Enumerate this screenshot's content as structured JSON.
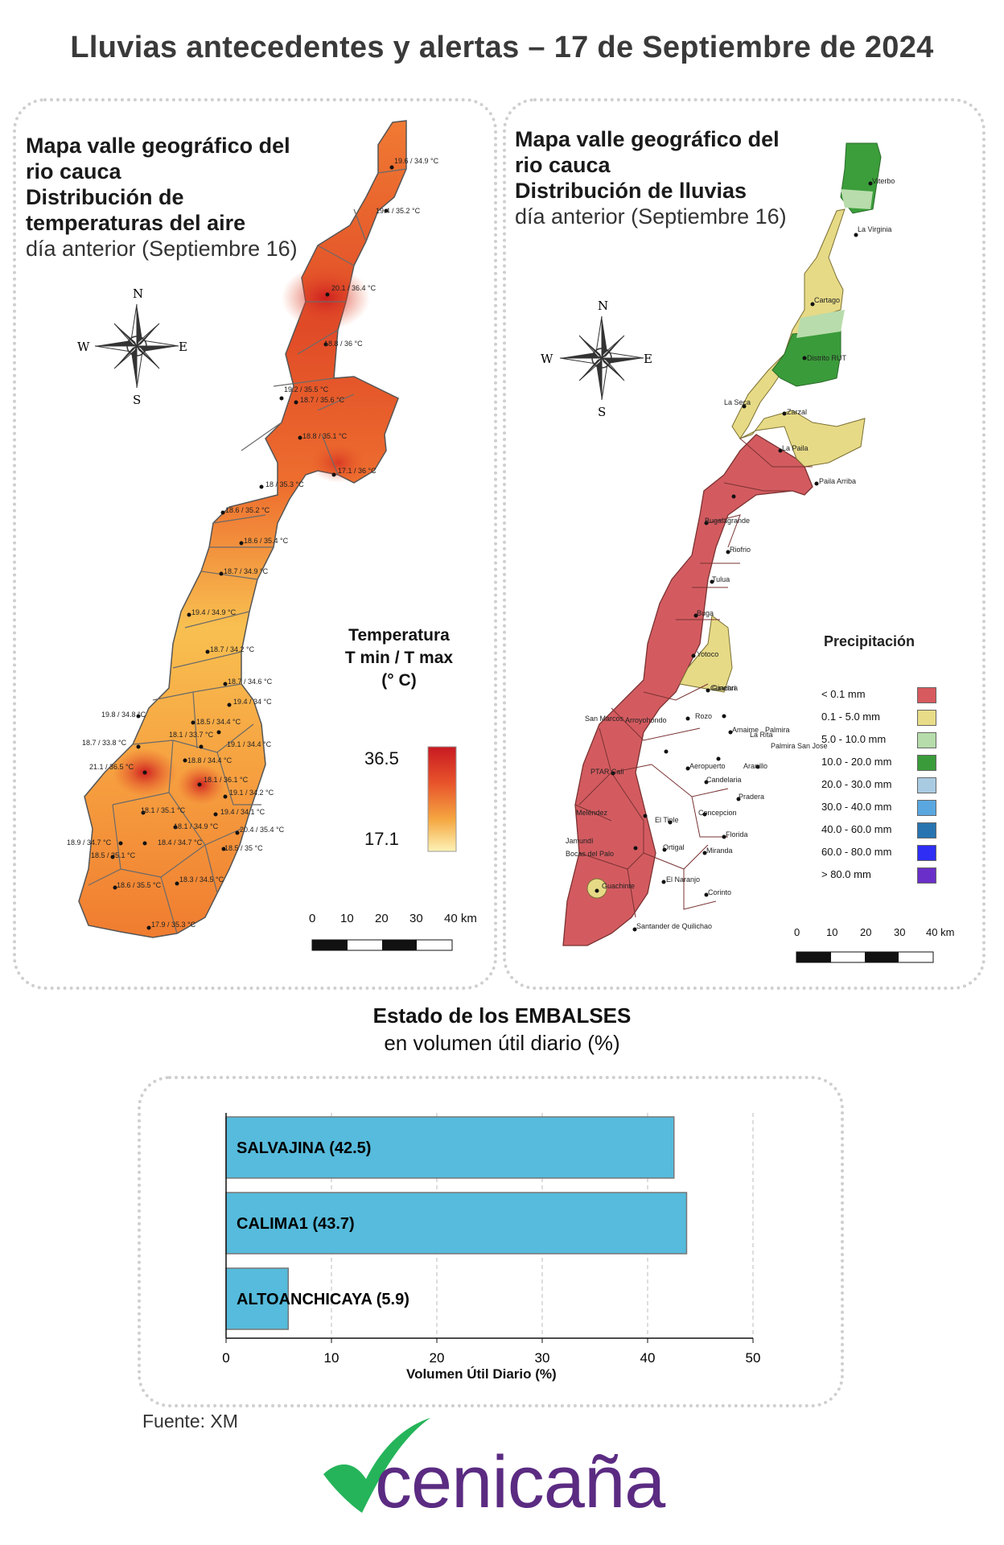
{
  "title": "Lluvias antecedentes y alertas – 17 de Septiembre de 2024",
  "left_panel": {
    "title_lines": [
      "Mapa valle geográfico del",
      "rio cauca",
      "Distribución de",
      "temperaturas del aire"
    ],
    "subtitle": "día anterior (Septiembre 16)",
    "compass": {
      "n": "N",
      "s": "S",
      "e": "E",
      "w": "W"
    },
    "legend_title_lines": [
      "Temperatura",
      "T min / T max",
      "(° C)"
    ],
    "legend_max": "36.5",
    "legend_min": "17.1",
    "scale_labels": [
      "0",
      "10",
      "20",
      "30",
      "40 km"
    ],
    "stations": [
      "19.6 / 34.9 °C",
      "19.4 / 35.2 °C",
      "20.1 / 36.4 °C",
      "18.8 / 36 °C",
      "19.2 / 35.5 °C",
      "18.7 / 35.6 °C",
      "18.8 / 35.1 °C",
      "17.1 / 36 °C",
      "18 / 35.3 °C",
      "18.6 / 35.2 °C",
      "18.6 / 35.4 °C",
      "18.7 / 34.9 °C",
      "19.4 / 34.9 °C",
      "18.7 / 34.2 °C",
      "18.7 / 34.6 °C",
      "19.4 / 34 °C",
      "19.8 / 34.8 °C",
      "18.5 / 34.4 °C",
      "18.1 / 33.7 °C",
      "18.7 / 33.8 °C",
      "19.1 / 34.4 °C",
      "21.1 / 36.5 °C",
      "18.8 / 34.4 °C",
      "18.1 / 36.1 °C",
      "19.1 / 34.2 °C",
      "18.1 / 35.1 °C",
      "19.4 / 34.1 °C",
      "18.1 / 34.9 °C",
      "20.4 / 35.4 °C",
      "18.9 / 34.7 °C",
      "18.4 / 34.7 °C",
      "18.5 / 35 °C",
      "18.5 / 35.1 °C",
      "18.6 / 35.5 °C",
      "18.3 / 34.5 °C",
      "17.9 / 35.3 °C"
    ]
  },
  "right_panel": {
    "title_lines": [
      "Mapa valle geográfico del",
      "rio cauca",
      "Distribución de lluvias"
    ],
    "subtitle": "día anterior (Septiembre 16)",
    "compass": {
      "n": "N",
      "s": "S",
      "e": "E",
      "w": "W"
    },
    "legend_title": "Precipitación",
    "legend": [
      {
        "label": "< 0.1 mm",
        "color": "#d65a5e"
      },
      {
        "label": "0.1 - 5.0 mm",
        "color": "#e8dc88"
      },
      {
        "label": "5.0 - 10.0 mm",
        "color": "#b5dcaa"
      },
      {
        "label": "10.0 - 20.0 mm",
        "color": "#3a9b3a"
      },
      {
        "label": "20.0 - 30.0 mm",
        "color": "#a9cbe2"
      },
      {
        "label": "30.0 - 40.0 mm",
        "color": "#5aa7e0"
      },
      {
        "label": "40.0 - 60.0 mm",
        "color": "#2874b0"
      },
      {
        "label": "60.0 - 80.0 mm",
        "color": "#2e2ef5"
      },
      {
        "label": "> 80.0 mm",
        "color": "#6a2fc8"
      }
    ],
    "scale_labels": [
      "0",
      "10",
      "20",
      "30",
      "40 km"
    ],
    "places": [
      "Viterbo",
      "La Virginia",
      "Cartago",
      "Distrito RUT",
      "La Seca",
      "Zarzal",
      "La Paila",
      "Paila Arriba",
      "Bugalagrande",
      "Riofrio",
      "Tulua",
      "Buga",
      "Yotoco",
      "Guacari",
      "Ginebra",
      "San Marcos",
      "Rozo",
      "Amaime",
      "Palmira",
      "La Rita",
      "Arroyohondo",
      "Palmira San Jose",
      "Aeropuerto",
      "Aranillo",
      "PTAR Cali",
      "Candelaria",
      "Pradera",
      "Meléndez",
      "Concepcion",
      "El Tiple",
      "Florida",
      "Jamundí",
      "Bocas del Palo",
      "Ortigal",
      "Miranda",
      "Guachinte",
      "El Naranjo",
      "Corinto",
      "Santander de Quilichao"
    ]
  },
  "reservoirs": {
    "title": "Estado de los EMBALSES",
    "subtitle": "en volumen útil diario (%)",
    "xlabel": "Volumen Útil Diario (%)",
    "fuente": "Fuente: XM"
  },
  "chart_data": {
    "type": "bar",
    "orientation": "horizontal",
    "categories": [
      "SALVAJINA (42.5)",
      "CALIMA1 (43.7)",
      "ALTOANCHICAYA (5.9)"
    ],
    "values": [
      42.5,
      43.7,
      5.9
    ],
    "xlabel": "Volumen Útil Diario (%)",
    "xlim": [
      0,
      50
    ],
    "xticks": [
      "0",
      "10",
      "20",
      "30",
      "40",
      "50"
    ],
    "bar_color": "#56bbdc",
    "grid": "vertical dashed"
  },
  "logo": {
    "text": "cenicaña",
    "text_color": "#5b2b82",
    "mark_color": "#25b45a"
  }
}
